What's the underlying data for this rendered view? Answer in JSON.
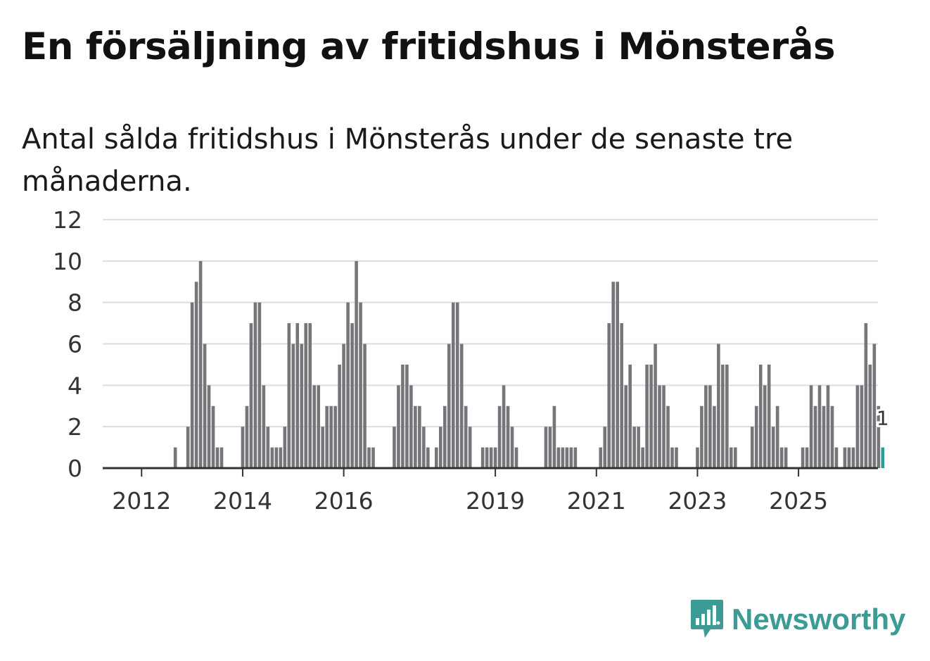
{
  "title": "En försäljning av fritidshus i Mönsterås",
  "subtitle": "Antal sålda fritidshus i Mönsterås under de senaste tre månaderna.",
  "brand": {
    "name": "Newsworthy",
    "color": "#3d9b96",
    "icon": "bar-chart-speech-icon"
  },
  "colors": {
    "bar": "#76767a",
    "highlight": "#2c9c95",
    "grid": "#dddddd",
    "axis": "#333333"
  },
  "chart_data": {
    "type": "bar",
    "title": "En försäljning av fritidshus i Mönsterås",
    "xlabel": "",
    "ylabel": "",
    "ylim": [
      0,
      12
    ],
    "yticks": [
      0,
      2,
      4,
      6,
      8,
      10,
      12
    ],
    "x_tick_labels": [
      "2012",
      "2014",
      "2016",
      "2019",
      "2021",
      "2023",
      "2025"
    ],
    "highlight": {
      "label": "1",
      "value": 1
    },
    "series": [
      {
        "name": "Antal sålda fritidshus",
        "values": [
          0,
          0,
          0,
          0,
          0,
          0,
          0,
          0,
          0,
          1,
          0,
          0,
          2,
          8,
          9,
          10,
          6,
          4,
          3,
          1,
          1,
          0,
          0,
          0,
          0,
          2,
          3,
          7,
          8,
          8,
          4,
          2,
          1,
          1,
          1,
          2,
          7,
          6,
          7,
          6,
          7,
          7,
          4,
          4,
          2,
          3,
          3,
          3,
          5,
          6,
          8,
          7,
          10,
          8,
          6,
          1,
          1,
          0,
          0,
          0,
          0,
          2,
          4,
          5,
          5,
          4,
          3,
          3,
          2,
          1,
          0,
          1,
          2,
          3,
          6,
          8,
          8,
          6,
          3,
          2,
          0,
          0,
          1,
          1,
          1,
          1,
          3,
          4,
          3,
          2,
          1,
          0,
          0,
          0,
          0,
          0,
          0,
          2,
          2,
          3,
          1,
          1,
          1,
          1,
          1,
          0,
          0,
          0,
          0,
          0,
          1,
          2,
          7,
          9,
          9,
          7,
          4,
          5,
          2,
          2,
          1,
          5,
          5,
          6,
          4,
          4,
          3,
          1,
          1,
          0,
          0,
          0,
          0,
          1,
          3,
          4,
          4,
          3,
          6,
          5,
          5,
          1,
          1,
          0,
          0,
          0,
          2,
          3,
          5,
          4,
          5,
          2,
          3,
          1,
          1,
          0,
          0,
          0,
          1,
          1,
          4,
          3,
          4,
          3,
          4,
          3,
          1,
          0,
          1,
          1,
          1,
          4,
          4,
          7,
          5,
          6,
          3,
          1
        ]
      }
    ]
  }
}
